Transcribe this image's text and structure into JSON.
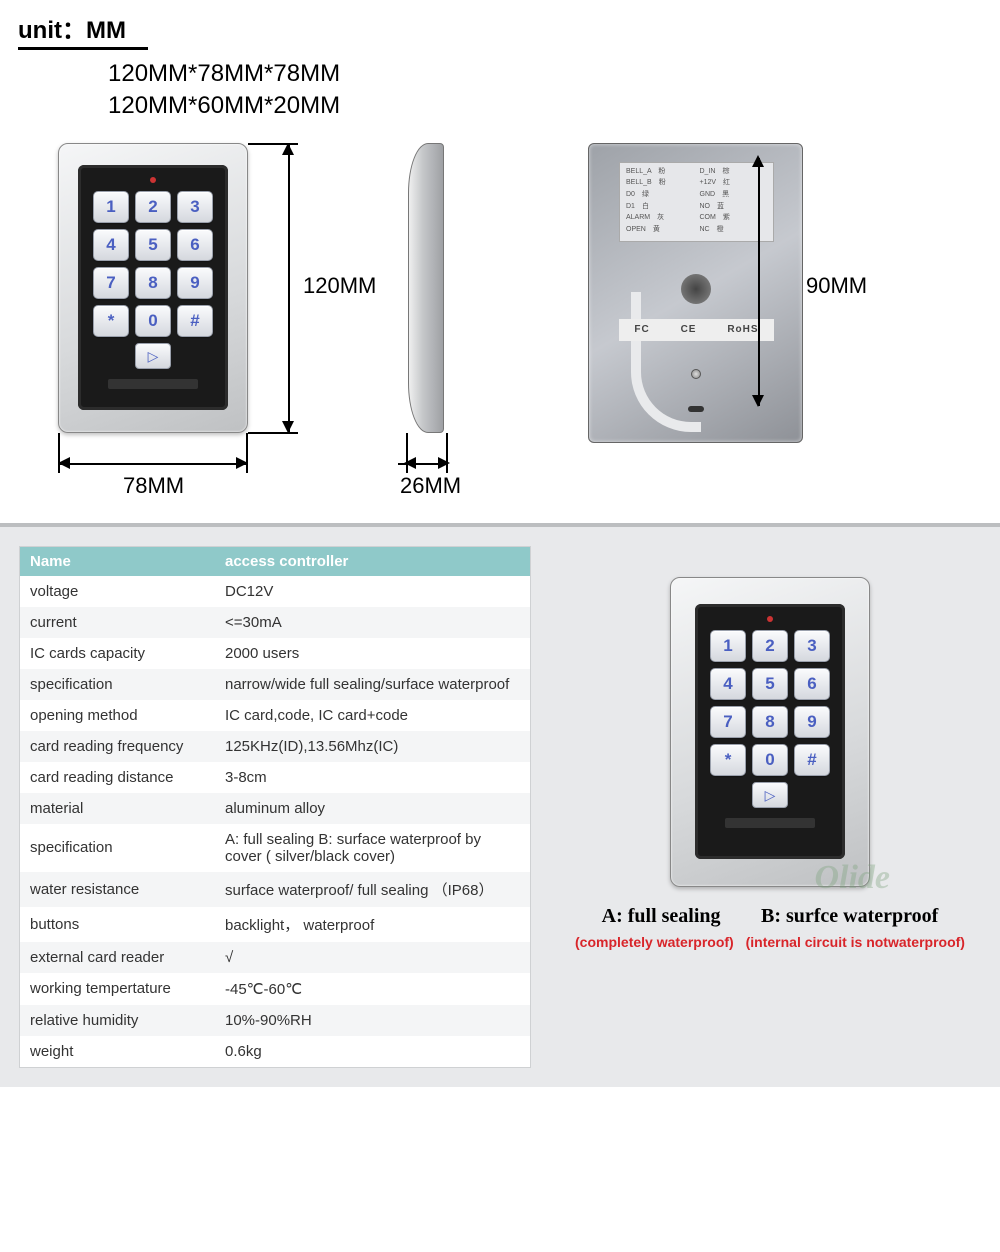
{
  "header": {
    "unit_label": "unit：MM",
    "dim_line1": "120MM*78MM*78MM",
    "dim_line2": "120MM*60MM*20MM"
  },
  "front": {
    "height_label": "120MM",
    "width_label": "78MM",
    "keys": [
      "1",
      "2",
      "3",
      "4",
      "5",
      "6",
      "7",
      "8",
      "9",
      "*",
      "0",
      "#"
    ],
    "play_icon": "▷"
  },
  "side": {
    "width_label": "26MM"
  },
  "back": {
    "height_label": "90MM",
    "pins_left": [
      "BELL_A",
      "BELL_B",
      "D0",
      "D1",
      "ALARM",
      "OPEN"
    ],
    "pins_left_cn": [
      "粉",
      "粉",
      "绿",
      "白",
      "灰",
      "黄"
    ],
    "pins_right": [
      "D_IN",
      "+12V",
      "GND",
      "NO",
      "COM",
      "NC"
    ],
    "pins_right_cn": [
      "棕",
      "红",
      "黑",
      "蓝",
      "紫",
      "橙"
    ],
    "cert": [
      "FC",
      "CE",
      "RoHS"
    ]
  },
  "spec_table": {
    "header": [
      "Name",
      "access controller"
    ],
    "rows": [
      [
        "voltage",
        "DC12V"
      ],
      [
        "current",
        "<=30mA"
      ],
      [
        "IC cards capacity",
        "2000 users"
      ],
      [
        "specification",
        "narrow/wide   full sealing/surface waterproof"
      ],
      [
        "opening method",
        "IC card,code, IC card+code"
      ],
      [
        "card reading frequency",
        "125KHz(ID),13.56Mhz(IC)"
      ],
      [
        "card reading distance",
        "3-8cm"
      ],
      [
        "material",
        "aluminum alloy"
      ],
      [
        "specification",
        "A: full sealing B: surface waterproof by cover ( silver/black cover)"
      ],
      [
        "water resistance",
        "surface waterproof/ full sealing  （IP68）"
      ],
      [
        "buttons",
        "backlight， waterproof"
      ],
      [
        "external card reader",
        "√"
      ],
      [
        "working tempertature",
        "-45℃-60℃"
      ],
      [
        "relative humidity",
        "10%-90%RH"
      ],
      [
        "weight",
        "0.6kg"
      ]
    ]
  },
  "variant": {
    "a_title": "A: full sealing",
    "b_title": "B: surfce waterproof",
    "a_sub": "(completely waterproof)",
    "b_sub": "(internal circuit is notwaterproof)",
    "watermark": "Olide"
  },
  "colors": {
    "table_header_bg": "#8fc9c9",
    "accent_red": "#d8252a",
    "key_text": "#4a5fc1"
  }
}
